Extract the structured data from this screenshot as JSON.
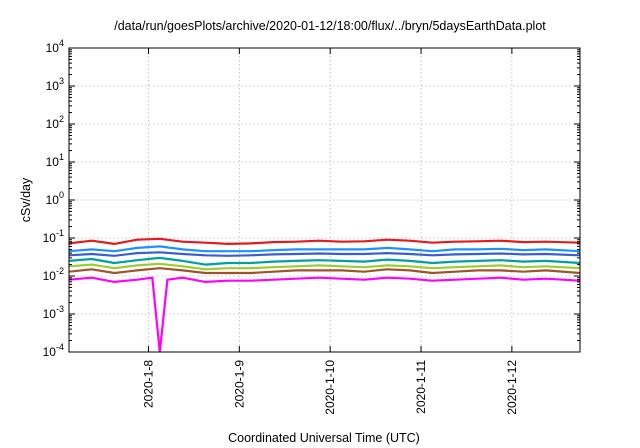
{
  "chart_data": {
    "type": "line",
    "title": "/data/run/goesPlots/archive/2020-01-12/18:00/flux/../bryn/5daysEarthData.plot",
    "xlabel": "Coordinated Universal Time (UTC)",
    "ylabel": "cSv/day",
    "yscale": "log",
    "ylim": [
      0.0001,
      10000
    ],
    "xlim": [
      "2020-01-07 03:00",
      "2020-01-12 18:00"
    ],
    "grid": true,
    "legend": "none",
    "x_ticks": [
      {
        "date": "2020-01-08",
        "label": "2020-1-8"
      },
      {
        "date": "2020-01-09",
        "label": "2020-1-9"
      },
      {
        "date": "2020-01-10",
        "label": "2020-1-10"
      },
      {
        "date": "2020-01-11",
        "label": "2020-1-11"
      },
      {
        "date": "2020-01-12",
        "label": "2020-1-12"
      }
    ],
    "y_ticks": [
      {
        "value": 0.0001,
        "base": "10",
        "exp": "-4"
      },
      {
        "value": 0.001,
        "base": "10",
        "exp": "-3"
      },
      {
        "value": 0.01,
        "base": "10",
        "exp": "-2"
      },
      {
        "value": 0.1,
        "base": "10",
        "exp": "-1"
      },
      {
        "value": 1,
        "base": "10",
        "exp": "0"
      },
      {
        "value": 10,
        "base": "10",
        "exp": "1"
      },
      {
        "value": 100,
        "base": "10",
        "exp": "2"
      },
      {
        "value": 1000,
        "base": "10",
        "exp": "3"
      },
      {
        "value": 10000,
        "base": "10",
        "exp": "4"
      }
    ],
    "series": [
      {
        "color": "#e41a1c",
        "values": [
          [
            "2020-01-07 03:00",
            0.072
          ],
          [
            "2020-01-07 09:00",
            0.085
          ],
          [
            "2020-01-07 15:00",
            0.07
          ],
          [
            "2020-01-07 21:00",
            0.09
          ],
          [
            "2020-01-08 03:00",
            0.095
          ],
          [
            "2020-01-08 09:00",
            0.08
          ],
          [
            "2020-01-08 15:00",
            0.075
          ],
          [
            "2020-01-08 21:00",
            0.07
          ],
          [
            "2020-01-09 03:00",
            0.072
          ],
          [
            "2020-01-09 09:00",
            0.078
          ],
          [
            "2020-01-09 15:00",
            0.08
          ],
          [
            "2020-01-09 21:00",
            0.085
          ],
          [
            "2020-01-10 03:00",
            0.08
          ],
          [
            "2020-01-10 09:00",
            0.082
          ],
          [
            "2020-01-10 15:00",
            0.09
          ],
          [
            "2020-01-10 21:00",
            0.085
          ],
          [
            "2020-01-11 03:00",
            0.075
          ],
          [
            "2020-01-11 09:00",
            0.08
          ],
          [
            "2020-01-11 15:00",
            0.082
          ],
          [
            "2020-01-11 21:00",
            0.085
          ],
          [
            "2020-01-12 03:00",
            0.078
          ],
          [
            "2020-01-12 09:00",
            0.08
          ],
          [
            "2020-01-12 18:00",
            0.075
          ]
        ]
      },
      {
        "color": "#1e90ff",
        "values": [
          [
            "2020-01-07 03:00",
            0.045
          ],
          [
            "2020-01-07 09:00",
            0.05
          ],
          [
            "2020-01-07 15:00",
            0.045
          ],
          [
            "2020-01-07 21:00",
            0.055
          ],
          [
            "2020-01-08 03:00",
            0.06
          ],
          [
            "2020-01-08 09:00",
            0.05
          ],
          [
            "2020-01-08 15:00",
            0.045
          ],
          [
            "2020-01-08 21:00",
            0.045
          ],
          [
            "2020-01-09 03:00",
            0.045
          ],
          [
            "2020-01-09 09:00",
            0.048
          ],
          [
            "2020-01-09 15:00",
            0.05
          ],
          [
            "2020-01-09 21:00",
            0.05
          ],
          [
            "2020-01-10 03:00",
            0.05
          ],
          [
            "2020-01-10 09:00",
            0.05
          ],
          [
            "2020-01-10 15:00",
            0.055
          ],
          [
            "2020-01-10 21:00",
            0.05
          ],
          [
            "2020-01-11 03:00",
            0.045
          ],
          [
            "2020-01-11 09:00",
            0.05
          ],
          [
            "2020-01-11 15:00",
            0.05
          ],
          [
            "2020-01-11 21:00",
            0.052
          ],
          [
            "2020-01-12 03:00",
            0.048
          ],
          [
            "2020-01-12 09:00",
            0.05
          ],
          [
            "2020-01-12 18:00",
            0.045
          ]
        ]
      },
      {
        "color": "#3a5fcd",
        "values": [
          [
            "2020-01-07 03:00",
            0.035
          ],
          [
            "2020-01-07 09:00",
            0.038
          ],
          [
            "2020-01-07 15:00",
            0.034
          ],
          [
            "2020-01-07 21:00",
            0.04
          ],
          [
            "2020-01-08 03:00",
            0.042
          ],
          [
            "2020-01-08 09:00",
            0.038
          ],
          [
            "2020-01-08 15:00",
            0.035
          ],
          [
            "2020-01-08 21:00",
            0.034
          ],
          [
            "2020-01-09 03:00",
            0.035
          ],
          [
            "2020-01-09 09:00",
            0.037
          ],
          [
            "2020-01-09 15:00",
            0.038
          ],
          [
            "2020-01-09 21:00",
            0.039
          ],
          [
            "2020-01-10 03:00",
            0.038
          ],
          [
            "2020-01-10 09:00",
            0.038
          ],
          [
            "2020-01-10 15:00",
            0.04
          ],
          [
            "2020-01-10 21:00",
            0.038
          ],
          [
            "2020-01-11 03:00",
            0.035
          ],
          [
            "2020-01-11 09:00",
            0.037
          ],
          [
            "2020-01-11 15:00",
            0.038
          ],
          [
            "2020-01-11 21:00",
            0.039
          ],
          [
            "2020-01-12 03:00",
            0.037
          ],
          [
            "2020-01-12 09:00",
            0.038
          ],
          [
            "2020-01-12 18:00",
            0.035
          ]
        ]
      },
      {
        "color": "#00a0a0",
        "values": [
          [
            "2020-01-07 03:00",
            0.025
          ],
          [
            "2020-01-07 09:00",
            0.028
          ],
          [
            "2020-01-07 15:00",
            0.022
          ],
          [
            "2020-01-07 21:00",
            0.026
          ],
          [
            "2020-01-08 03:00",
            0.03
          ],
          [
            "2020-01-08 09:00",
            0.025
          ],
          [
            "2020-01-08 15:00",
            0.02
          ],
          [
            "2020-01-08 21:00",
            0.022
          ],
          [
            "2020-01-09 03:00",
            0.022
          ],
          [
            "2020-01-09 09:00",
            0.024
          ],
          [
            "2020-01-09 15:00",
            0.025
          ],
          [
            "2020-01-09 21:00",
            0.026
          ],
          [
            "2020-01-10 03:00",
            0.025
          ],
          [
            "2020-01-10 09:00",
            0.024
          ],
          [
            "2020-01-10 15:00",
            0.027
          ],
          [
            "2020-01-10 21:00",
            0.025
          ],
          [
            "2020-01-11 03:00",
            0.022
          ],
          [
            "2020-01-11 09:00",
            0.024
          ],
          [
            "2020-01-11 15:00",
            0.025
          ],
          [
            "2020-01-11 21:00",
            0.026
          ],
          [
            "2020-01-12 03:00",
            0.024
          ],
          [
            "2020-01-12 09:00",
            0.025
          ],
          [
            "2020-01-12 18:00",
            0.022
          ]
        ]
      },
      {
        "color": "#9acd32",
        "values": [
          [
            "2020-01-07 03:00",
            0.018
          ],
          [
            "2020-01-07 09:00",
            0.02
          ],
          [
            "2020-01-07 15:00",
            0.016
          ],
          [
            "2020-01-07 21:00",
            0.019
          ],
          [
            "2020-01-08 03:00",
            0.021
          ],
          [
            "2020-01-08 09:00",
            0.018
          ],
          [
            "2020-01-08 15:00",
            0.015
          ],
          [
            "2020-01-08 21:00",
            0.016
          ],
          [
            "2020-01-09 03:00",
            0.016
          ],
          [
            "2020-01-09 09:00",
            0.017
          ],
          [
            "2020-01-09 15:00",
            0.018
          ],
          [
            "2020-01-09 21:00",
            0.019
          ],
          [
            "2020-01-10 03:00",
            0.018
          ],
          [
            "2020-01-10 09:00",
            0.017
          ],
          [
            "2020-01-10 15:00",
            0.019
          ],
          [
            "2020-01-10 21:00",
            0.018
          ],
          [
            "2020-01-11 03:00",
            0.016
          ],
          [
            "2020-01-11 09:00",
            0.017
          ],
          [
            "2020-01-11 15:00",
            0.018
          ],
          [
            "2020-01-11 21:00",
            0.019
          ],
          [
            "2020-01-12 03:00",
            0.017
          ],
          [
            "2020-01-12 09:00",
            0.018
          ],
          [
            "2020-01-12 18:00",
            0.016
          ]
        ]
      },
      {
        "color": "#a0522d",
        "values": [
          [
            "2020-01-07 03:00",
            0.013
          ],
          [
            "2020-01-07 09:00",
            0.015
          ],
          [
            "2020-01-07 15:00",
            0.012
          ],
          [
            "2020-01-07 21:00",
            0.014
          ],
          [
            "2020-01-08 03:00",
            0.016
          ],
          [
            "2020-01-08 09:00",
            0.014
          ],
          [
            "2020-01-08 15:00",
            0.012
          ],
          [
            "2020-01-08 21:00",
            0.012
          ],
          [
            "2020-01-09 03:00",
            0.012
          ],
          [
            "2020-01-09 09:00",
            0.013
          ],
          [
            "2020-01-09 15:00",
            0.014
          ],
          [
            "2020-01-09 21:00",
            0.014
          ],
          [
            "2020-01-10 03:00",
            0.014
          ],
          [
            "2020-01-10 09:00",
            0.013
          ],
          [
            "2020-01-10 15:00",
            0.015
          ],
          [
            "2020-01-10 21:00",
            0.014
          ],
          [
            "2020-01-11 03:00",
            0.012
          ],
          [
            "2020-01-11 09:00",
            0.013
          ],
          [
            "2020-01-11 15:00",
            0.014
          ],
          [
            "2020-01-11 21:00",
            0.014
          ],
          [
            "2020-01-12 03:00",
            0.013
          ],
          [
            "2020-01-12 09:00",
            0.014
          ],
          [
            "2020-01-12 18:00",
            0.012
          ]
        ]
      },
      {
        "color": "#ff00ff",
        "values": [
          [
            "2020-01-07 03:00",
            0.008
          ],
          [
            "2020-01-07 09:00",
            0.009
          ],
          [
            "2020-01-07 15:00",
            0.007
          ],
          [
            "2020-01-07 21:00",
            0.008
          ],
          [
            "2020-01-08 01:00",
            0.009
          ],
          [
            "2020-01-08 03:00",
            0.0001
          ],
          [
            "2020-01-08 05:00",
            0.008
          ],
          [
            "2020-01-08 09:00",
            0.009
          ],
          [
            "2020-01-08 15:00",
            0.007
          ],
          [
            "2020-01-08 21:00",
            0.0075
          ],
          [
            "2020-01-09 03:00",
            0.0075
          ],
          [
            "2020-01-09 09:00",
            0.008
          ],
          [
            "2020-01-09 15:00",
            0.0085
          ],
          [
            "2020-01-09 21:00",
            0.009
          ],
          [
            "2020-01-10 03:00",
            0.0085
          ],
          [
            "2020-01-10 09:00",
            0.008
          ],
          [
            "2020-01-10 15:00",
            0.009
          ],
          [
            "2020-01-10 21:00",
            0.0085
          ],
          [
            "2020-01-11 03:00",
            0.0075
          ],
          [
            "2020-01-11 09:00",
            0.008
          ],
          [
            "2020-01-11 15:00",
            0.0085
          ],
          [
            "2020-01-11 21:00",
            0.009
          ],
          [
            "2020-01-12 03:00",
            0.008
          ],
          [
            "2020-01-12 09:00",
            0.0085
          ],
          [
            "2020-01-12 18:00",
            0.0075
          ]
        ]
      }
    ]
  }
}
